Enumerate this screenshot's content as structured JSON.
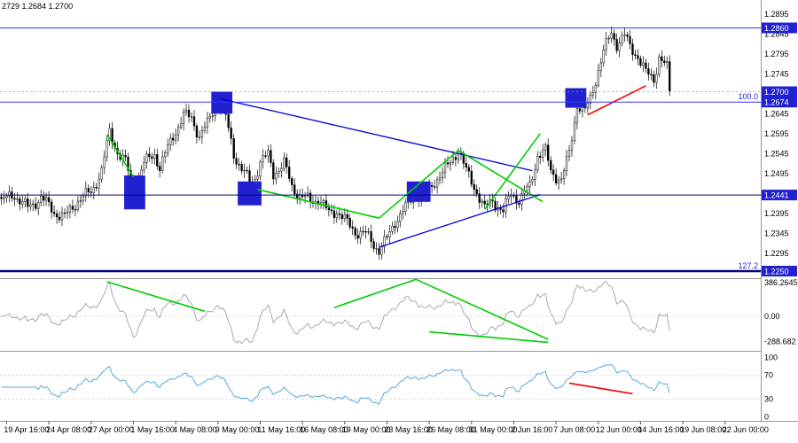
{
  "header": {
    "ohlc_text": "2729 1.2684 1.2700"
  },
  "colors": {
    "bull": "#ffffff",
    "bear": "#000000",
    "outline": "#000000",
    "blue": "#0000dd",
    "green": "#00cc00",
    "red": "#ee0000",
    "square": "#2121cf",
    "ind1_line": "#aaaaaa",
    "ind2_line": "#58a8d8",
    "dotted": "#c0c0c0",
    "separator": "#969696",
    "badge_bg": "#2121cf",
    "badge_text": "#ffffff",
    "axis_text": "#000000",
    "fib_label": "#2121cf"
  },
  "price_axis": {
    "scale_labels": [
      "1.2895",
      "1.2845",
      "1.2795",
      "1.2745",
      "1.2645",
      "1.2595",
      "1.2545",
      "1.2495",
      "1.2445",
      "1.2395",
      "1.2345",
      "1.2295"
    ]
  },
  "time_axis": {
    "first_bar": 2,
    "bar_step": 16,
    "labels": [
      "19 Apr 16:00",
      "24 Apr 08:00",
      "27 Apr 00:00",
      "1 May 16:00",
      "4 May 08:00",
      "9 May 00:00",
      "11 May 16:00",
      "16 May 08:00",
      "19 May 00:00",
      "23 May 16:00",
      "26 May 08:00",
      "31 May 00:00",
      "2 Jun 16:00",
      "7 Jun 08:00",
      "12 Jun 00:00",
      "14 Jun 16:00",
      "19 Jun 08:00",
      "22 Jun 00:00"
    ],
    "bottom_right_label": "22 Jun 00:00"
  },
  "chart_data": {
    "type": "candlestick",
    "n_bars": 254,
    "slots": 288,
    "price_top": 1.293,
    "price_bottom": 1.22345,
    "waypoints": [
      [
        0,
        1.2425
      ],
      [
        5,
        1.2442
      ],
      [
        10,
        1.2408
      ],
      [
        15,
        1.2435
      ],
      [
        20,
        1.2398
      ],
      [
        24,
        1.2385
      ],
      [
        29,
        1.2428
      ],
      [
        34,
        1.2448
      ],
      [
        38,
        1.2502
      ],
      [
        41,
        1.2597
      ],
      [
        44,
        1.255
      ],
      [
        47,
        1.2523
      ],
      [
        50,
        1.2455
      ],
      [
        54,
        1.252
      ],
      [
        58,
        1.2545
      ],
      [
        60,
        1.251
      ],
      [
        65,
        1.259
      ],
      [
        69,
        1.264
      ],
      [
        72,
        1.2635
      ],
      [
        75,
        1.2588
      ],
      [
        78,
        1.2618
      ],
      [
        82,
        1.2682
      ],
      [
        85,
        1.2635
      ],
      [
        88,
        1.2545
      ],
      [
        91,
        1.2505
      ],
      [
        95,
        1.2465
      ],
      [
        98,
        1.2525
      ],
      [
        101,
        1.254
      ],
      [
        103,
        1.2495
      ],
      [
        107,
        1.252
      ],
      [
        110,
        1.2462
      ],
      [
        113,
        1.244
      ],
      [
        117,
        1.2425
      ],
      [
        120,
        1.2432
      ],
      [
        124,
        1.2395
      ],
      [
        127,
        1.2402
      ],
      [
        131,
        1.237
      ],
      [
        134,
        1.235
      ],
      [
        138,
        1.2342
      ],
      [
        143,
        1.2303
      ],
      [
        146,
        1.233
      ],
      [
        149,
        1.2375
      ],
      [
        153,
        1.241
      ],
      [
        157,
        1.2446
      ],
      [
        160,
        1.243
      ],
      [
        164,
        1.2476
      ],
      [
        169,
        1.2512
      ],
      [
        173,
        1.2556
      ],
      [
        176,
        1.25
      ],
      [
        180,
        1.245
      ],
      [
        183,
        1.2405
      ],
      [
        186,
        1.2428
      ],
      [
        190,
        1.2398
      ],
      [
        193,
        1.2446
      ],
      [
        196,
        1.2428
      ],
      [
        200,
        1.2462
      ],
      [
        203,
        1.2542
      ],
      [
        206,
        1.255
      ],
      [
        208,
        1.25
      ],
      [
        212,
        1.2478
      ],
      [
        215,
        1.2545
      ],
      [
        218,
        1.2668
      ],
      [
        221,
        1.265
      ],
      [
        223,
        1.2682
      ],
      [
        226,
        1.2755
      ],
      [
        228,
        1.28
      ],
      [
        231,
        1.2848
      ],
      [
        233,
        1.282
      ],
      [
        236,
        1.284
      ],
      [
        238,
        1.2812
      ],
      [
        241,
        1.279
      ],
      [
        244,
        1.2746
      ],
      [
        247,
        1.2732
      ],
      [
        249,
        1.2788
      ],
      [
        252,
        1.2758
      ],
      [
        253,
        1.27
      ]
    ],
    "horizontal_levels": [
      {
        "price": 1.286,
        "color": "#3333ff",
        "width": 1,
        "badge": "1.2860"
      },
      {
        "price": 1.2674,
        "color": "#3333ff",
        "width": 1,
        "badge": "1.2674",
        "label": "100.0"
      },
      {
        "price": 1.2441,
        "color": "#000080",
        "width": 1,
        "badge": "1.2441"
      },
      {
        "price": 1.225,
        "color": "#000080",
        "width": 2.5,
        "badge": "1.2250",
        "label": "127.2"
      }
    ],
    "current_price": {
      "value": 1.27,
      "badge": "1.2700"
    },
    "rectangles": [
      {
        "b1": 47,
        "b2": 54,
        "p1": 1.2405,
        "p2": 1.249
      },
      {
        "b1": 80,
        "b2": 87,
        "p1": 1.2645,
        "p2": 1.27
      },
      {
        "b1": 90,
        "b2": 98,
        "p1": 1.2415,
        "p2": 1.2475
      },
      {
        "b1": 154,
        "b2": 162,
        "p1": 1.2424,
        "p2": 1.2475
      },
      {
        "b1": 214,
        "b2": 221,
        "p1": 1.266,
        "p2": 1.2709
      }
    ],
    "trendlines": [
      {
        "color": "blue",
        "p1": [
          83,
          1.2682
        ],
        "p2": [
          201,
          1.2502
        ]
      },
      {
        "color": "blue",
        "p1": [
          143,
          1.231
        ],
        "p2": [
          204,
          1.2442
        ]
      },
      {
        "color": "green",
        "p1": [
          40,
          1.2593
        ],
        "p2": [
          50,
          1.2487
        ]
      },
      {
        "color": "green",
        "p1": [
          97,
          1.2455
        ],
        "p2": [
          143,
          1.2383
        ]
      },
      {
        "color": "green",
        "p1": [
          143,
          1.2383
        ],
        "p2": [
          173,
          1.2553
        ]
      },
      {
        "color": "green",
        "p1": [
          173,
          1.2553
        ],
        "p2": [
          205,
          1.2424
        ]
      },
      {
        "color": "green",
        "p1": [
          183,
          1.2405
        ],
        "p2": [
          204,
          1.2595
        ]
      },
      {
        "color": "red",
        "p1": [
          222,
          1.2642
        ],
        "p2": [
          244,
          1.2715
        ]
      }
    ],
    "indicator1": {
      "axis_labels": [
        {
          "text": "386.2645",
          "value": 386.2645
        },
        {
          "text": "0.00",
          "value": 0
        },
        {
          "text": "-288.682",
          "value": -288.682
        }
      ],
      "zero_level": 0,
      "trendlines": [
        {
          "p1": [
            40,
            398
          ],
          "p2": [
            77,
            58
          ]
        },
        {
          "p1": [
            126,
            100
          ],
          "p2": [
            157,
            425
          ]
        },
        {
          "p1": [
            157,
            425
          ],
          "p2": [
            207,
            -265
          ]
        },
        {
          "p1": [
            162,
            -180
          ],
          "p2": [
            207,
            -300
          ]
        }
      ]
    },
    "indicator2": {
      "axis_labels": [
        {
          "text": "100",
          "value": 100
        },
        {
          "text": "70",
          "value": 70
        },
        {
          "text": "30",
          "value": 30
        },
        {
          "text": "0",
          "value": 0
        }
      ],
      "dotted_levels": [
        70,
        30
      ],
      "red_segment": {
        "p1": [
          215,
          57
        ],
        "p2": [
          239,
          39
        ]
      }
    }
  }
}
